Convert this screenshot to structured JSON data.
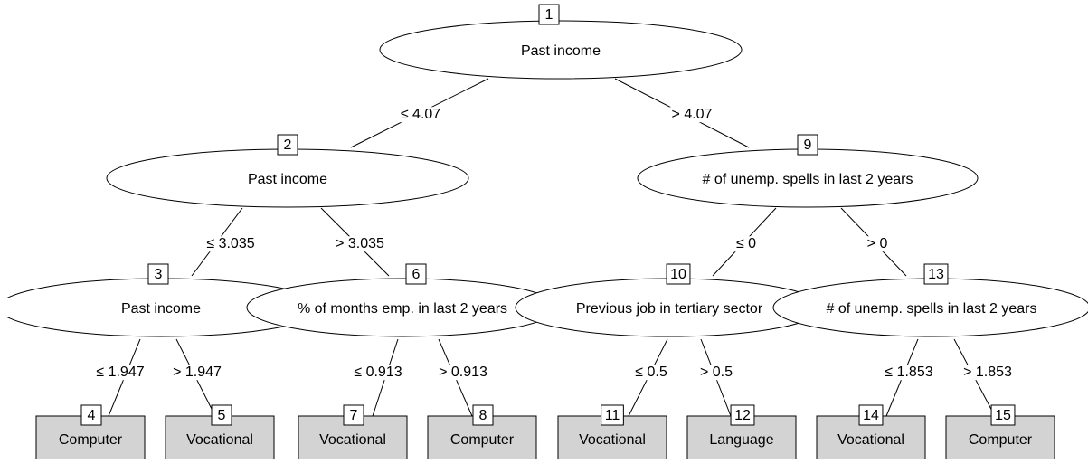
{
  "tree": {
    "nodes": [
      {
        "id": 1,
        "label": "Past income"
      },
      {
        "id": 2,
        "label": "Past income"
      },
      {
        "id": 3,
        "label": "Past income"
      },
      {
        "id": 4,
        "label": "Computer"
      },
      {
        "id": 5,
        "label": "Vocational"
      },
      {
        "id": 6,
        "label": "% of months emp. in last 2 years"
      },
      {
        "id": 7,
        "label": "Vocational"
      },
      {
        "id": 8,
        "label": "Computer"
      },
      {
        "id": 9,
        "label": "# of unemp. spells in last 2 years"
      },
      {
        "id": 10,
        "label": "Previous job in tertiary sector"
      },
      {
        "id": 11,
        "label": "Vocational"
      },
      {
        "id": 12,
        "label": "Language"
      },
      {
        "id": 13,
        "label": "# of unemp. spells in last 2 years"
      },
      {
        "id": 14,
        "label": "Vocational"
      },
      {
        "id": 15,
        "label": "Computer"
      }
    ],
    "edges": [
      {
        "from": 1,
        "to": 2,
        "label": "≤ 4.07"
      },
      {
        "from": 1,
        "to": 9,
        "label": "> 4.07"
      },
      {
        "from": 2,
        "to": 3,
        "label": "≤ 3.035"
      },
      {
        "from": 2,
        "to": 6,
        "label": "> 3.035"
      },
      {
        "from": 3,
        "to": 4,
        "label": "≤ 1.947"
      },
      {
        "from": 3,
        "to": 5,
        "label": "> 1.947"
      },
      {
        "from": 6,
        "to": 7,
        "label": "≤ 0.913"
      },
      {
        "from": 6,
        "to": 8,
        "label": "> 0.913"
      },
      {
        "from": 9,
        "to": 10,
        "label": "≤ 0"
      },
      {
        "from": 9,
        "to": 13,
        "label": "> 0"
      },
      {
        "from": 10,
        "to": 11,
        "label": "≤ 0.5"
      },
      {
        "from": 10,
        "to": 12,
        "label": "> 0.5"
      },
      {
        "from": 13,
        "to": 14,
        "label": "≤ 1.853"
      },
      {
        "from": 13,
        "to": 15,
        "label": "> 1.853"
      }
    ]
  }
}
